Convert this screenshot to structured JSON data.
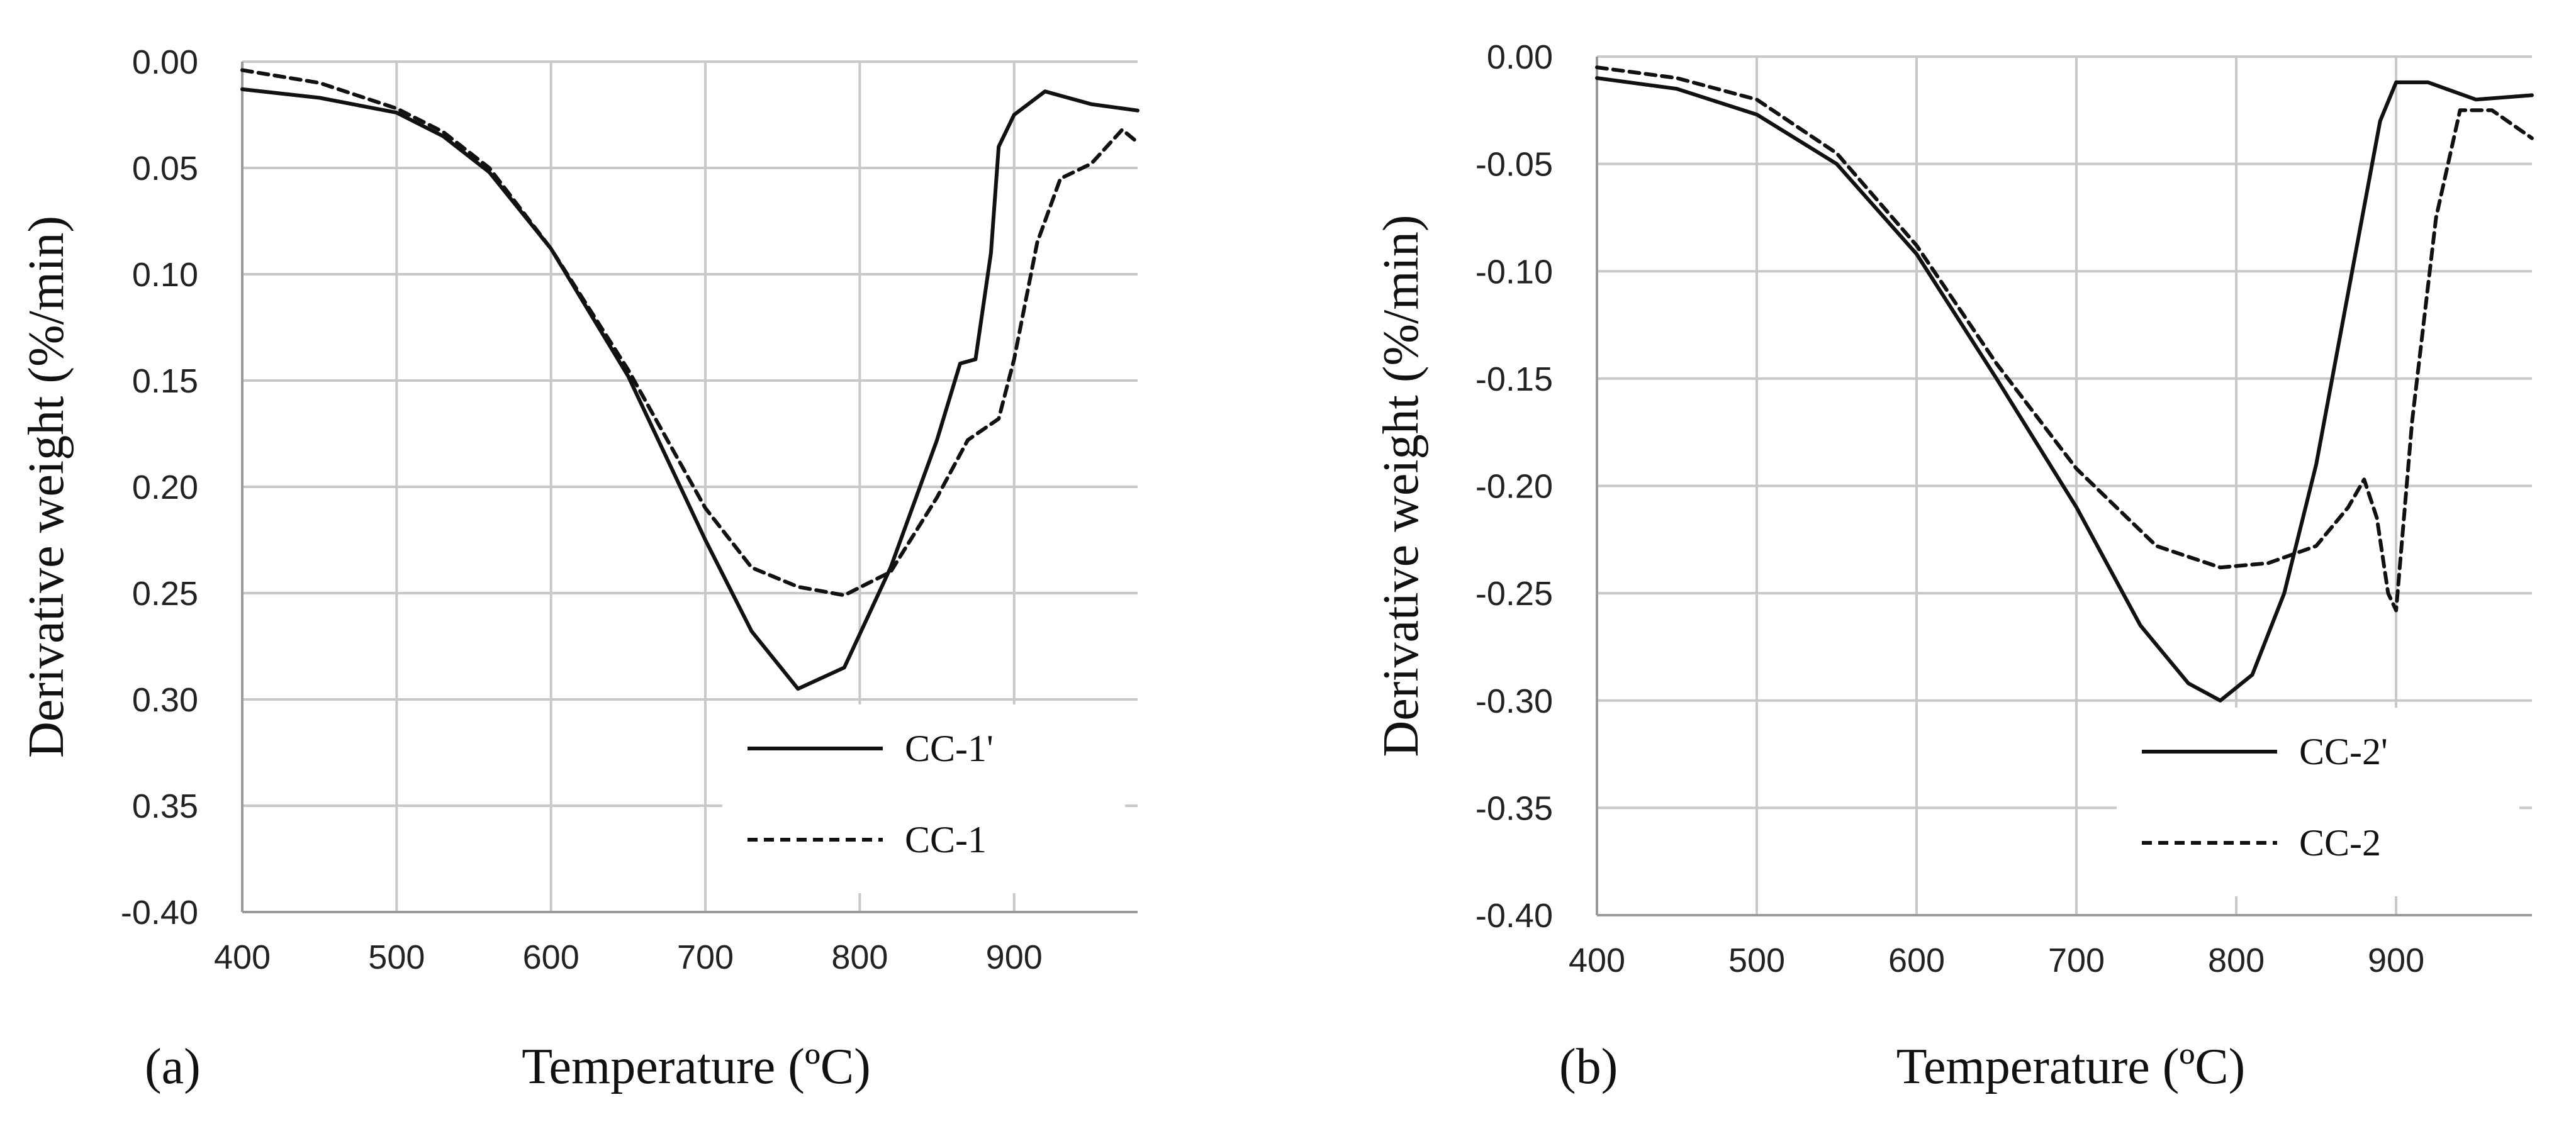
{
  "chart_data": [
    {
      "panel_label": "(a)",
      "type": "line",
      "xlabel": "Temperature (ºC)",
      "ylabel": "Derivative weight (%/min)",
      "xlim": [
        400,
        980
      ],
      "ylim": [
        -0.4,
        0.0
      ],
      "x_ticks": [
        "400",
        "500",
        "600",
        "700",
        "800",
        "900"
      ],
      "y_ticks": [
        "0.00",
        "0.05",
        "0.10",
        "0.15",
        "0.20",
        "0.25",
        "0.30",
        "0.35",
        "-0.40"
      ],
      "grid": true,
      "legend": "bottom-right",
      "series": [
        {
          "name": "CC-1'",
          "style": "solid",
          "x": [
            400,
            450,
            500,
            530,
            560,
            600,
            650,
            700,
            730,
            760,
            790,
            820,
            850,
            865,
            875,
            885,
            890,
            900,
            920,
            950,
            980
          ],
          "y": [
            -0.013,
            -0.017,
            -0.024,
            -0.035,
            -0.052,
            -0.088,
            -0.148,
            -0.225,
            -0.268,
            -0.295,
            -0.285,
            -0.238,
            -0.178,
            -0.142,
            -0.14,
            -0.09,
            -0.04,
            -0.025,
            -0.014,
            -0.02,
            -0.023
          ]
        },
        {
          "name": "CC-1",
          "style": "dashed",
          "x": [
            400,
            450,
            500,
            530,
            560,
            600,
            650,
            700,
            730,
            760,
            790,
            820,
            850,
            870,
            890,
            900,
            915,
            930,
            950,
            970,
            980
          ],
          "y": [
            -0.004,
            -0.01,
            -0.022,
            -0.033,
            -0.05,
            -0.088,
            -0.145,
            -0.21,
            -0.238,
            -0.247,
            -0.251,
            -0.24,
            -0.205,
            -0.178,
            -0.168,
            -0.14,
            -0.085,
            -0.055,
            -0.048,
            -0.032,
            -0.038
          ]
        }
      ]
    },
    {
      "panel_label": "(b)",
      "type": "line",
      "xlabel": "Temperature (ºC)",
      "ylabel": "Derivative weight (%/min)",
      "xlim": [
        400,
        985
      ],
      "ylim": [
        -0.4,
        0.0
      ],
      "x_ticks": [
        "400",
        "500",
        "600",
        "700",
        "800",
        "900"
      ],
      "y_ticks": [
        "0.00",
        "-0.05",
        "-0.10",
        "-0.15",
        "-0.20",
        "-0.25",
        "-0.30",
        "-0.35",
        "-0.40"
      ],
      "grid": true,
      "legend": "bottom-right",
      "series": [
        {
          "name": "CC-2'",
          "style": "solid",
          "x": [
            400,
            450,
            500,
            550,
            600,
            650,
            700,
            740,
            770,
            790,
            810,
            830,
            850,
            870,
            890,
            900,
            920,
            950,
            985
          ],
          "y": [
            -0.01,
            -0.015,
            -0.027,
            -0.05,
            -0.092,
            -0.15,
            -0.21,
            -0.265,
            -0.292,
            -0.3,
            -0.288,
            -0.25,
            -0.19,
            -0.11,
            -0.03,
            -0.012,
            -0.012,
            -0.02,
            -0.018
          ]
        },
        {
          "name": "CC-2",
          "style": "dashed",
          "x": [
            400,
            450,
            500,
            550,
            600,
            650,
            700,
            750,
            790,
            820,
            850,
            870,
            880,
            888,
            895,
            900,
            910,
            925,
            940,
            960,
            985
          ],
          "y": [
            -0.005,
            -0.01,
            -0.02,
            -0.045,
            -0.088,
            -0.143,
            -0.192,
            -0.228,
            -0.238,
            -0.236,
            -0.228,
            -0.21,
            -0.197,
            -0.215,
            -0.25,
            -0.258,
            -0.17,
            -0.075,
            -0.025,
            -0.025,
            -0.038
          ]
        }
      ]
    }
  ]
}
